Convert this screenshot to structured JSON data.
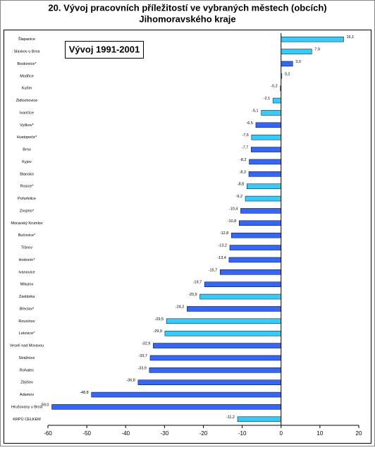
{
  "chart_data": {
    "type": "hbar",
    "title": "20. Vývoj pracovních příležitostí ve vybraných městech (obcích)",
    "subtitle": "Jihomoravského kraje",
    "annotation": "Vývoj 1991-2001",
    "categories": [
      "Šlapanice",
      "Slavkov u Brna",
      "Boskovice*",
      "Modřice",
      "Kuřim",
      "Židlochovice",
      "Ivančice",
      "Vyškov*",
      "Hustopeče*",
      "Brno",
      "Kyjov",
      "Blansko",
      "Rosice*",
      "Pohořelice",
      "Znojmo*",
      "Moravský Krumlov",
      "Bučovice*",
      "Tišnov",
      "Hodonín*",
      "Ivanovice",
      "Mikulov",
      "Zastávka",
      "Břeclav*",
      "Rousínov",
      "Letovice*",
      "Veselí nad Moravou",
      "Strážnice",
      "Rohatec",
      "Zbýšov",
      "Adamov",
      "Hrušovany u Brna",
      "KRPÚ CELKEM"
    ],
    "values": [
      16.1,
      7.9,
      3.0,
      0.2,
      -0.2,
      -2.1,
      -5.1,
      -6.5,
      -7.6,
      -7.7,
      -8.2,
      -8.3,
      -8.8,
      -9.2,
      -10.4,
      -10.8,
      -12.8,
      -13.2,
      -13.4,
      -15.7,
      -19.7,
      -20.9,
      -24.2,
      -29.5,
      -29.9,
      -32.9,
      -33.7,
      -33.9,
      -36.8,
      -48.8,
      -59.0,
      -11.2
    ],
    "value_labels": [
      "16,1",
      "7,9",
      "3,0",
      "0,2",
      "-0,2",
      "-2,1",
      "-5,1",
      "-6,5",
      "-7,6",
      "-7,7",
      "-8,2",
      "-8,3",
      "-8,8",
      "-9,2",
      "-10,4",
      "-10,8",
      "-12,8",
      "-13,2",
      "-13,4",
      "-15,7",
      "-19,7",
      "-20,9",
      "-24,2",
      "-29,5",
      "-29,9",
      "-32,9",
      "-33,7",
      "-33,9",
      "-36,8",
      "-48,8",
      "-59,0",
      "-11,2"
    ],
    "colors": [
      "#33ccff",
      "#33ccff",
      "#3366ff",
      "#33ccff",
      "#3366ff",
      "#33ccff",
      "#33ccff",
      "#3366ff",
      "#33ccff",
      "#3366ff",
      "#3366ff",
      "#3366ff",
      "#33ccff",
      "#33ccff",
      "#3366ff",
      "#3366ff",
      "#3366ff",
      "#3366ff",
      "#3366ff",
      "#3366ff",
      "#3366ff",
      "#33ccff",
      "#3366ff",
      "#33ccff",
      "#33ccff",
      "#3366ff",
      "#3366ff",
      "#3366ff",
      "#3366ff",
      "#3366ff",
      "#3366ff",
      "#33ccff"
    ],
    "xlim": [
      -60,
      20
    ],
    "xticks": [
      -60,
      -50,
      -40,
      -30,
      -20,
      -10,
      0,
      10,
      20
    ]
  }
}
